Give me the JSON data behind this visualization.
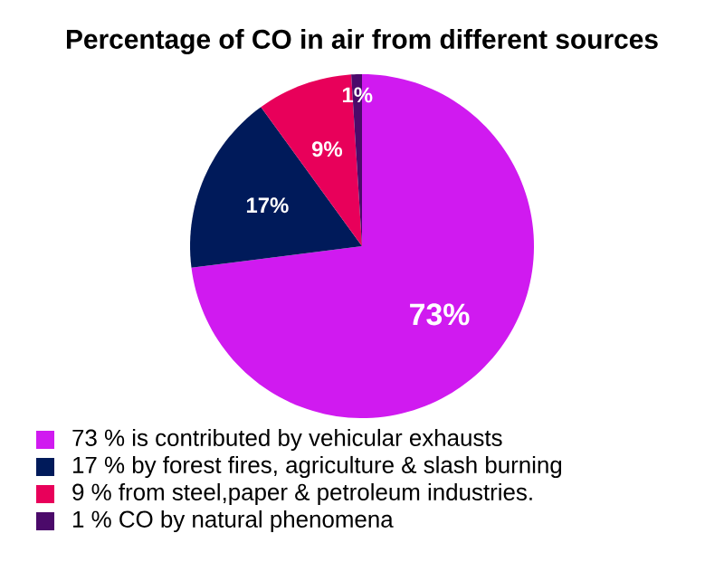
{
  "chart_data": {
    "type": "pie",
    "title": "Percentage of CO in air from different sources",
    "categories": [
      "73 % is contributed by vehicular exhausts",
      "17 % by forest fires, agriculture & slash burning",
      "9 % from steel,paper & petroleum industries.",
      "1 % CO by natural phenomena"
    ],
    "values": [
      73,
      17,
      9,
      1
    ],
    "colors": [
      "#d01af0",
      "#001a5a",
      "#e8005a",
      "#4b0a6a"
    ],
    "value_labels": [
      "73%",
      "17%",
      "9%",
      "1%"
    ],
    "legend": "bottom"
  }
}
